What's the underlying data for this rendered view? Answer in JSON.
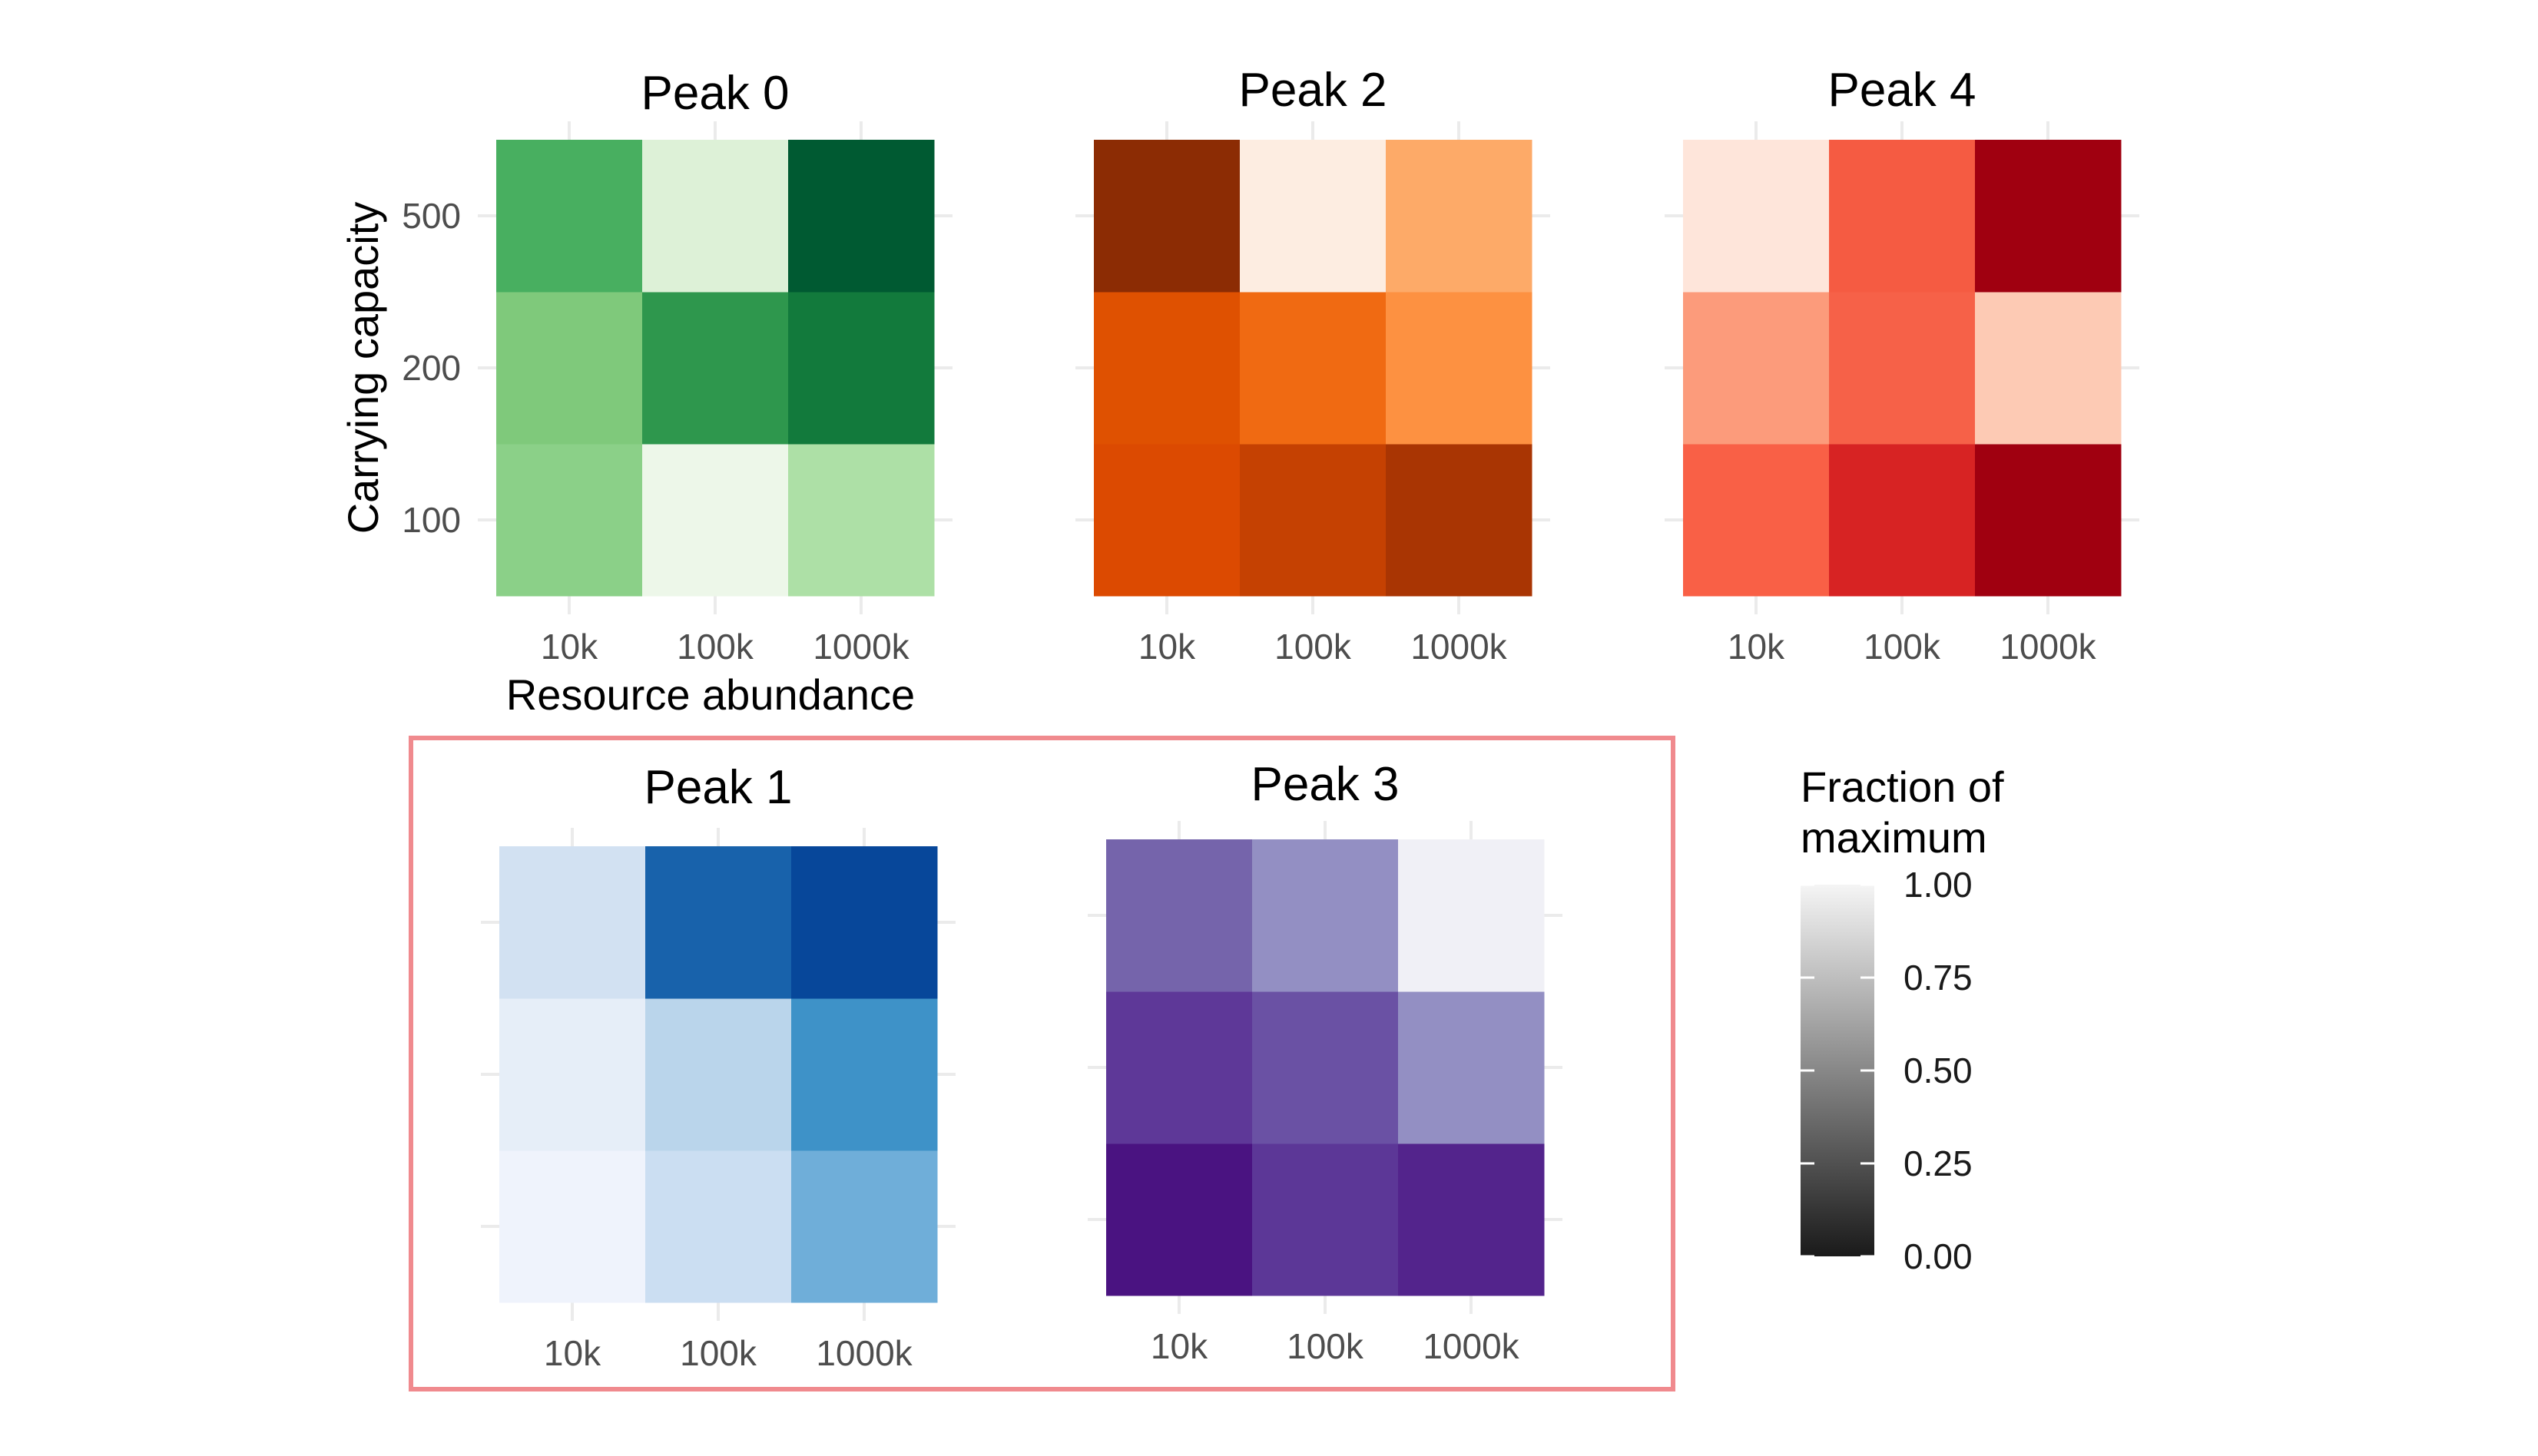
{
  "chart_data": [
    {
      "type": "heatmap",
      "title": "Peak 0",
      "x_categories": [
        "10k",
        "100k",
        "1000k"
      ],
      "y_categories": [
        "100",
        "200",
        "500"
      ],
      "xlabel": "Resource abundance",
      "ylabel": "Carrying capacity",
      "colormap": "greens",
      "values": [
        [
          0.55,
          0.97,
          0.7
        ],
        [
          0.6,
          0.2,
          0.1
        ],
        [
          0.35,
          0.9,
          0.0
        ]
      ],
      "colors": [
        [
          "#8bd088",
          "#edf7e9",
          "#ade0a6"
        ],
        [
          "#7fc97b",
          "#2e974d",
          "#127a3c"
        ],
        [
          "#48af60",
          "#ddf1d7",
          "#005a32"
        ]
      ]
    },
    {
      "type": "heatmap",
      "title": "Peak 2",
      "x_categories": [
        "10k",
        "100k",
        "1000k"
      ],
      "y_categories": [
        "100",
        "200",
        "500"
      ],
      "xlabel": "",
      "ylabel": "",
      "colormap": "oranges",
      "values": [
        [
          0.22,
          0.15,
          0.08
        ],
        [
          0.22,
          0.35,
          0.48
        ],
        [
          0.0,
          0.98,
          0.6
        ]
      ],
      "colors": [
        [
          "#dc4a01",
          "#c54102",
          "#a93503"
        ],
        [
          "#df5101",
          "#f06a12",
          "#fd9141"
        ],
        [
          "#8c2c04",
          "#fdede1",
          "#fdaa68"
        ]
      ]
    },
    {
      "type": "heatmap",
      "title": "Peak 4",
      "x_categories": [
        "10k",
        "100k",
        "1000k"
      ],
      "y_categories": [
        "100",
        "200",
        "500"
      ],
      "xlabel": "",
      "ylabel": "",
      "colormap": "reds",
      "values": [
        [
          0.5,
          0.3,
          0.0
        ],
        [
          0.7,
          0.5,
          0.9
        ],
        [
          0.98,
          0.4,
          0.03
        ]
      ],
      "colors": [
        [
          "#f96046",
          "#d72323",
          "#a00010"
        ],
        [
          "#fc9b7b",
          "#f66148",
          "#fdcab4"
        ],
        [
          "#fee5da",
          "#f55b42",
          "#a00010"
        ]
      ]
    },
    {
      "type": "heatmap",
      "title": "Peak 1",
      "x_categories": [
        "10k",
        "100k",
        "1000k"
      ],
      "y_categories": [
        "100",
        "200",
        "500"
      ],
      "xlabel": "",
      "ylabel": "",
      "colormap": "blues",
      "values": [
        [
          0.98,
          0.8,
          0.45
        ],
        [
          0.93,
          0.7,
          0.3
        ],
        [
          0.85,
          0.1,
          0.0
        ]
      ],
      "colors": [
        [
          "#eff3fc",
          "#cbdef2",
          "#6faed9"
        ],
        [
          "#e6eef8",
          "#bad5eb",
          "#3e92c8"
        ],
        [
          "#d2e1f2",
          "#1862ab",
          "#07479a"
        ]
      ]
    },
    {
      "type": "heatmap",
      "title": "Peak 3",
      "x_categories": [
        "10k",
        "100k",
        "1000k"
      ],
      "y_categories": [
        "100",
        "200",
        "500"
      ],
      "xlabel": "",
      "ylabel": "",
      "colormap": "purples",
      "values": [
        [
          0.0,
          0.25,
          0.1
        ],
        [
          0.25,
          0.35,
          0.6
        ],
        [
          0.4,
          0.6,
          0.98
        ]
      ],
      "colors": [
        [
          "#4a1381",
          "#5c3797",
          "#53248c"
        ],
        [
          "#5e3898",
          "#6a51a4",
          "#938fc3"
        ],
        [
          "#7564ab",
          "#938fc3",
          "#f0f0f6"
        ]
      ]
    }
  ],
  "legend": {
    "title_line1": "Fraction of",
    "title_line2": "maximum",
    "ticks": [
      "1.00",
      "0.75",
      "0.50",
      "0.25",
      "0.00"
    ],
    "tick_values": [
      1.0,
      0.75,
      0.5,
      0.25,
      0.0
    ],
    "gradient_top_color": "#f5f5f5",
    "gradient_bottom_color": "#1a1a1a"
  },
  "highlight_box_color": "#f08a8e"
}
